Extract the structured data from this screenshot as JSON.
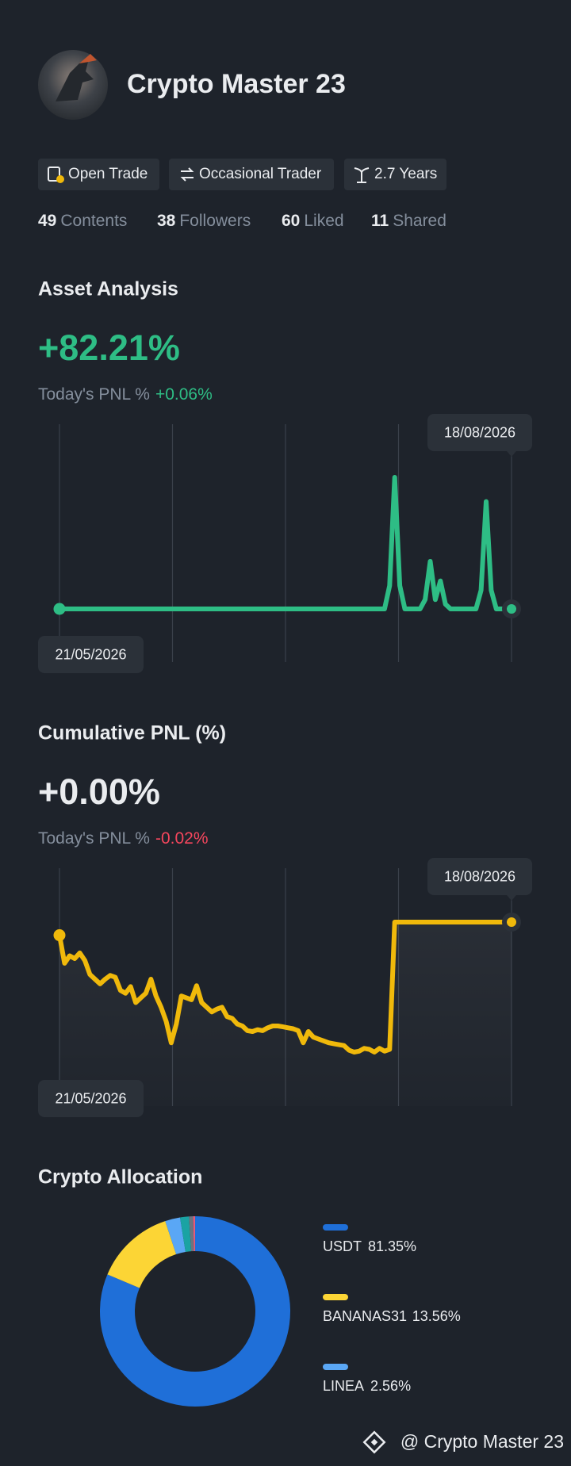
{
  "profile": {
    "name": "Crypto Master 23",
    "tags": [
      "Open Trade",
      "Occasional Trader",
      "2.7 Years"
    ],
    "stats": [
      {
        "value": 49,
        "label": "Contents"
      },
      {
        "value": 38,
        "label": "Followers"
      },
      {
        "value": 60,
        "label": "Liked"
      },
      {
        "value": 11,
        "label": "Shared"
      }
    ]
  },
  "chart_data": [
    {
      "type": "line",
      "title": "Asset Analysis",
      "headline": "+82.21%",
      "pnl_label": "Today's PNL %",
      "pnl_value": "+0.06%",
      "start_date": "21/05/2026",
      "end_date": "18/08/2026",
      "color": "#2ebd85",
      "area": false,
      "values": [
        0,
        0,
        0,
        0,
        0,
        0,
        0,
        0,
        0,
        0,
        0,
        0,
        0,
        0,
        0,
        0,
        0,
        0,
        0,
        0,
        0,
        0,
        0,
        0,
        0,
        0,
        0,
        0,
        0,
        0,
        0,
        0,
        0,
        0,
        0,
        0,
        0,
        0,
        0,
        0,
        0,
        0,
        0,
        0,
        0,
        0,
        0,
        0,
        0,
        0,
        0,
        0,
        0,
        0,
        0,
        0,
        0,
        0,
        0,
        0,
        0,
        0,
        0,
        0,
        0,
        25,
        141,
        25,
        0,
        0,
        0,
        0,
        10,
        51,
        10,
        30,
        5,
        0,
        0,
        0,
        0,
        0,
        0,
        20,
        115,
        20,
        0,
        0,
        0,
        0
      ]
    },
    {
      "type": "line",
      "title": "Cumulative PNL (%)",
      "headline": "+0.00%",
      "pnl_label": "Today's PNL %",
      "pnl_value": "-0.02%",
      "start_date": "21/05/2026",
      "end_date": "18/08/2026",
      "color": "#f0b90b",
      "area": true,
      "values": [
        -0.14,
        -0.44,
        -0.36,
        -0.39,
        -0.33,
        -0.41,
        -0.56,
        -0.61,
        -0.66,
        -0.61,
        -0.57,
        -0.59,
        -0.73,
        -0.76,
        -0.69,
        -0.86,
        -0.81,
        -0.76,
        -0.61,
        -0.79,
        -0.91,
        -1.06,
        -1.29,
        -1.09,
        -0.79,
        -0.81,
        -0.83,
        -0.68,
        -0.86,
        -0.91,
        -0.96,
        -0.93,
        -0.91,
        -1.01,
        -1.03,
        -1.09,
        -1.11,
        -1.16,
        -1.17,
        -1.15,
        -1.16,
        -1.13,
        -1.11,
        -1.11,
        -1.12,
        -1.13,
        -1.14,
        -1.16,
        -1.29,
        -1.17,
        -1.23,
        -1.25,
        -1.27,
        -1.29,
        -1.3,
        -1.31,
        -1.32,
        -1.37,
        -1.39,
        -1.38,
        -1.35,
        -1.36,
        -1.39,
        -1.35,
        -1.38,
        -1.36,
        0,
        0,
        0,
        0,
        0,
        0,
        0,
        0,
        0,
        0,
        0,
        0,
        0,
        0,
        0,
        0,
        0,
        0,
        0,
        0,
        0,
        0,
        0,
        0
      ]
    },
    {
      "type": "donut",
      "title": "Crypto Allocation",
      "categories": [
        "USDT",
        "BANANAS31",
        "LINEA",
        null,
        null,
        null
      ],
      "values": [
        81.35,
        13.56,
        2.56,
        1.5,
        0.7,
        0.33
      ],
      "value_labels": [
        "81.35%",
        "13.56%",
        "2.56%",
        null,
        null,
        null
      ],
      "colors": [
        "#1f6fd8",
        "#fcd535",
        "#5aa7f5",
        "#1aa3a3",
        "#6b7480",
        "#e85a7a"
      ]
    }
  ],
  "watermark": "@ Crypto Master 23"
}
